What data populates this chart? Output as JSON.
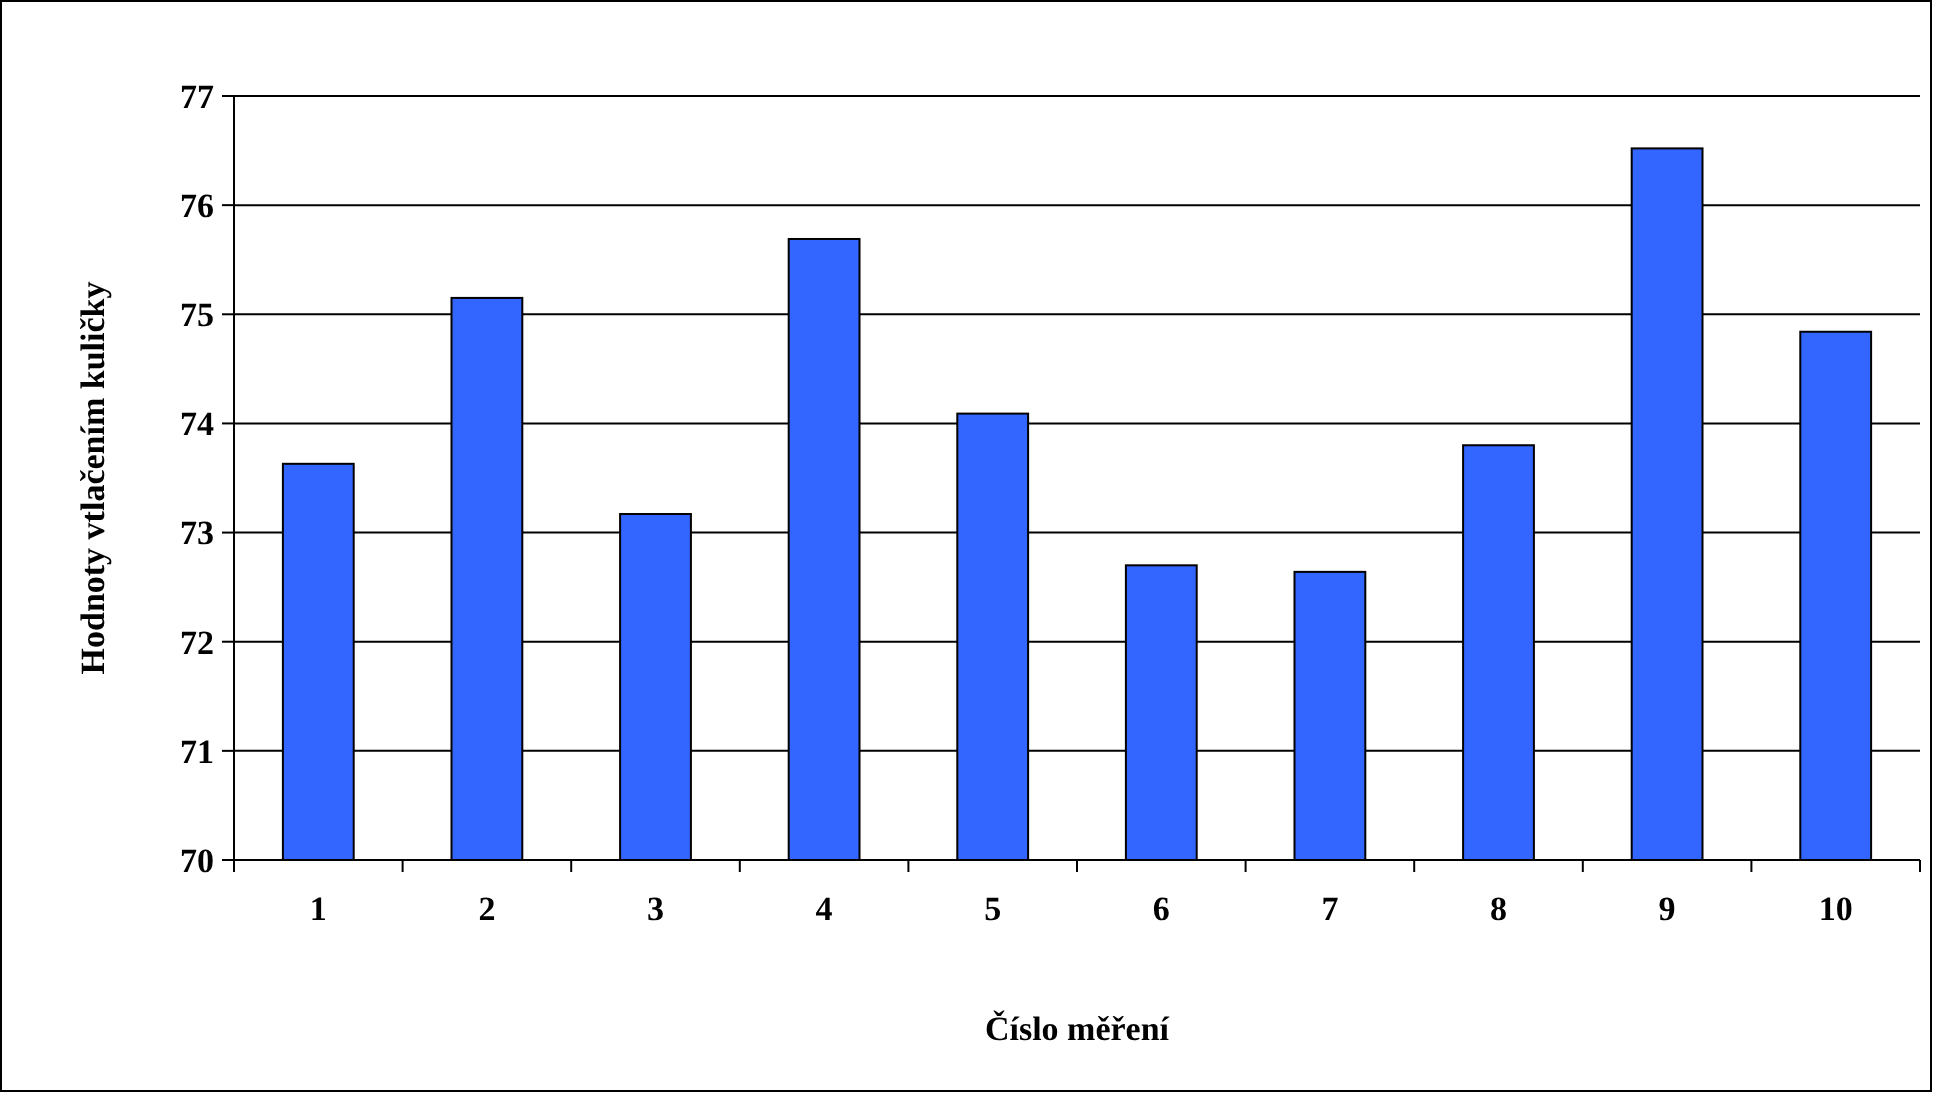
{
  "chart_data": {
    "type": "bar",
    "xlabel": "Číslo měření",
    "ylabel": "Hodnoty vtlačením kuličky",
    "categories": [
      "1",
      "2",
      "3",
      "4",
      "5",
      "6",
      "7",
      "8",
      "9",
      "10"
    ],
    "values": [
      73.63,
      75.15,
      73.17,
      75.69,
      74.09,
      72.7,
      72.64,
      73.8,
      76.52,
      74.84
    ],
    "color": "#3366ff",
    "ylim": [
      70,
      77
    ],
    "yticks": [
      70,
      71,
      72,
      73,
      74,
      75,
      76,
      77
    ],
    "grid": "y"
  }
}
